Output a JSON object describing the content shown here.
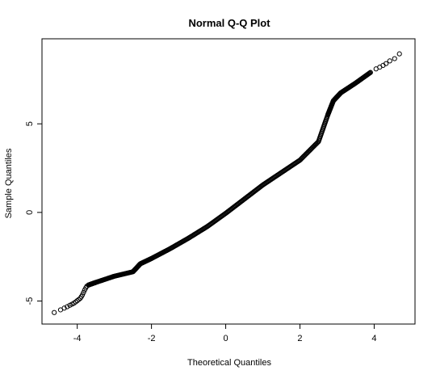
{
  "chart_data": {
    "type": "scatter",
    "title": "Normal Q-Q Plot",
    "xlabel": "Theoretical Quantiles",
    "ylabel": "Sample Quantiles",
    "xlim": [
      -4.95,
      5.1
    ],
    "ylim": [
      -6.3,
      9.8
    ],
    "x_ticks": [
      -4,
      -2,
      0,
      2,
      4
    ],
    "y_ticks": [
      -5,
      0,
      5
    ],
    "grid": false,
    "legend": "none",
    "marker": "open-circle",
    "point_color": "#000000",
    "points": [
      [
        -4.62,
        -5.65
      ],
      [
        -4.45,
        -5.5
      ],
      [
        -4.35,
        -5.4
      ],
      [
        -4.27,
        -5.32
      ],
      [
        -4.2,
        -5.24
      ],
      [
        -4.14,
        -5.18
      ],
      [
        -4.09,
        -5.12
      ],
      [
        -4.04,
        -5.05
      ],
      [
        -4.0,
        -4.98
      ],
      [
        -3.96,
        -4.92
      ],
      [
        -3.92,
        -4.85
      ],
      [
        -3.89,
        -4.76
      ],
      [
        -3.86,
        -4.65
      ],
      [
        -3.83,
        -4.52
      ],
      [
        -3.8,
        -4.38
      ],
      [
        -3.77,
        -4.26
      ],
      [
        -3.74,
        -4.16
      ],
      [
        -3.7,
        -4.1
      ],
      [
        -3.5,
        -3.95
      ],
      [
        -3.0,
        -3.6
      ],
      [
        -2.5,
        -3.35
      ],
      [
        -2.3,
        -2.9
      ],
      [
        -2.0,
        -2.6
      ],
      [
        -1.5,
        -2.05
      ],
      [
        -1.0,
        -1.45
      ],
      [
        -0.5,
        -0.8
      ],
      [
        0.0,
        -0.05
      ],
      [
        0.5,
        0.75
      ],
      [
        1.0,
        1.55
      ],
      [
        1.5,
        2.25
      ],
      [
        2.0,
        2.95
      ],
      [
        2.5,
        4.0
      ],
      [
        2.75,
        5.5
      ],
      [
        2.9,
        6.3
      ],
      [
        3.1,
        6.75
      ],
      [
        3.5,
        7.3
      ],
      [
        3.9,
        7.9
      ],
      [
        4.05,
        8.1
      ],
      [
        4.15,
        8.2
      ],
      [
        4.24,
        8.3
      ],
      [
        4.32,
        8.4
      ],
      [
        4.42,
        8.55
      ],
      [
        4.55,
        8.68
      ],
      [
        4.68,
        8.95
      ]
    ]
  }
}
